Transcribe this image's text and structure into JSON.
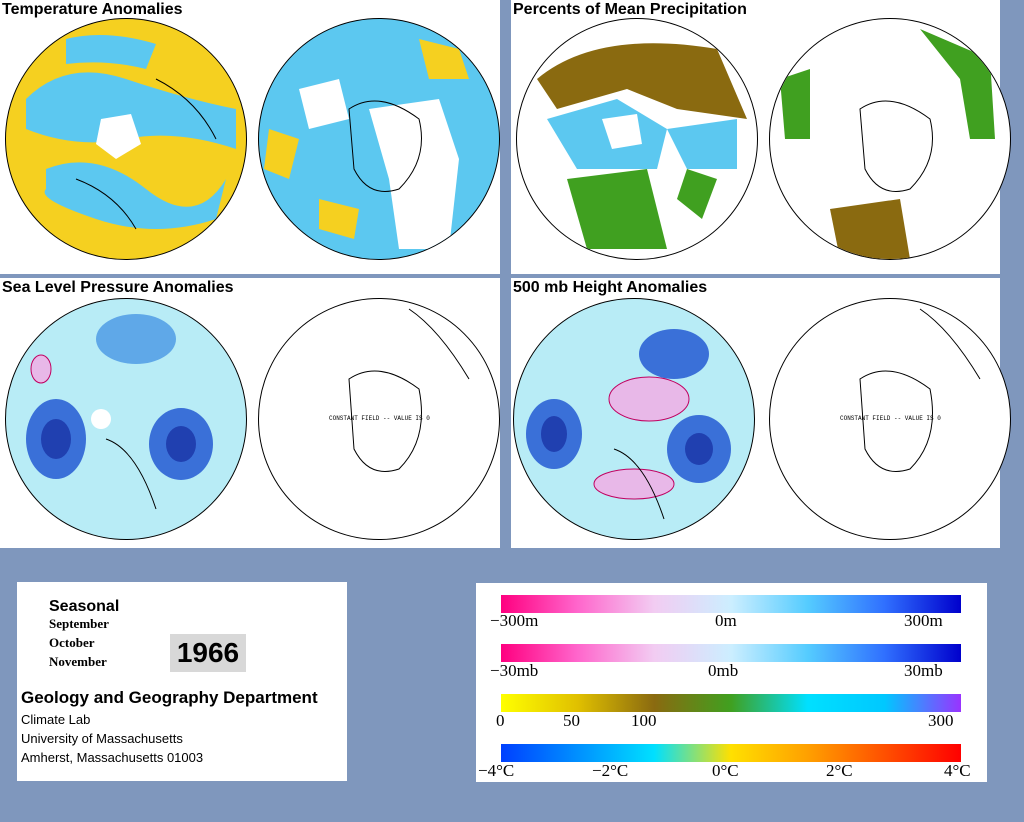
{
  "panels": {
    "temperature": {
      "title": "Temperature Anomalies"
    },
    "precipitation": {
      "title": "Percents of Mean Precipitation"
    },
    "pressure": {
      "title": "Sea Level Pressure Anomalies",
      "south_note": "CONSTANT FIELD -- VALUE IS 0"
    },
    "height": {
      "title": "500 mb Height Anomalies",
      "south_note": "CONSTANT FIELD -- VALUE IS 0"
    }
  },
  "info": {
    "season_label": "Seasonal",
    "months": [
      "September",
      "October",
      "November"
    ],
    "year": "1966",
    "department": "Geology and Geography Department",
    "lab": "Climate Lab",
    "university": "University of Massachusetts",
    "address": "Amherst, Massachusetts 01003"
  },
  "legend": {
    "height": {
      "ticks": [
        "−300m",
        "0m",
        "300m"
      ],
      "colors": [
        "#ff0080",
        "#ff66cc",
        "#f2ccf2",
        "#cceeff",
        "#55ccff",
        "#3070ff",
        "#0000cc"
      ]
    },
    "pressure": {
      "ticks": [
        "−30mb",
        "0mb",
        "30mb"
      ],
      "colors": [
        "#ff0080",
        "#ff66cc",
        "#f2ccf2",
        "#cceeff",
        "#55ccff",
        "#3070ff",
        "#0000cc"
      ]
    },
    "precip": {
      "ticks": [
        "0",
        "50",
        "100",
        "300"
      ],
      "colors": [
        "#ffff00",
        "#e0c000",
        "#8a6a10",
        "#40a020",
        "#00e0ff",
        "#00c8ff",
        "#9933ff"
      ]
    },
    "temp": {
      "ticks": [
        "−4°C",
        "−2°C",
        "0°C",
        "2°C",
        "4°C"
      ],
      "colors": [
        "#0040ff",
        "#0090ff",
        "#00e0ff",
        "#ffe000",
        "#ffa000",
        "#ff5000",
        "#ff0000"
      ]
    }
  }
}
